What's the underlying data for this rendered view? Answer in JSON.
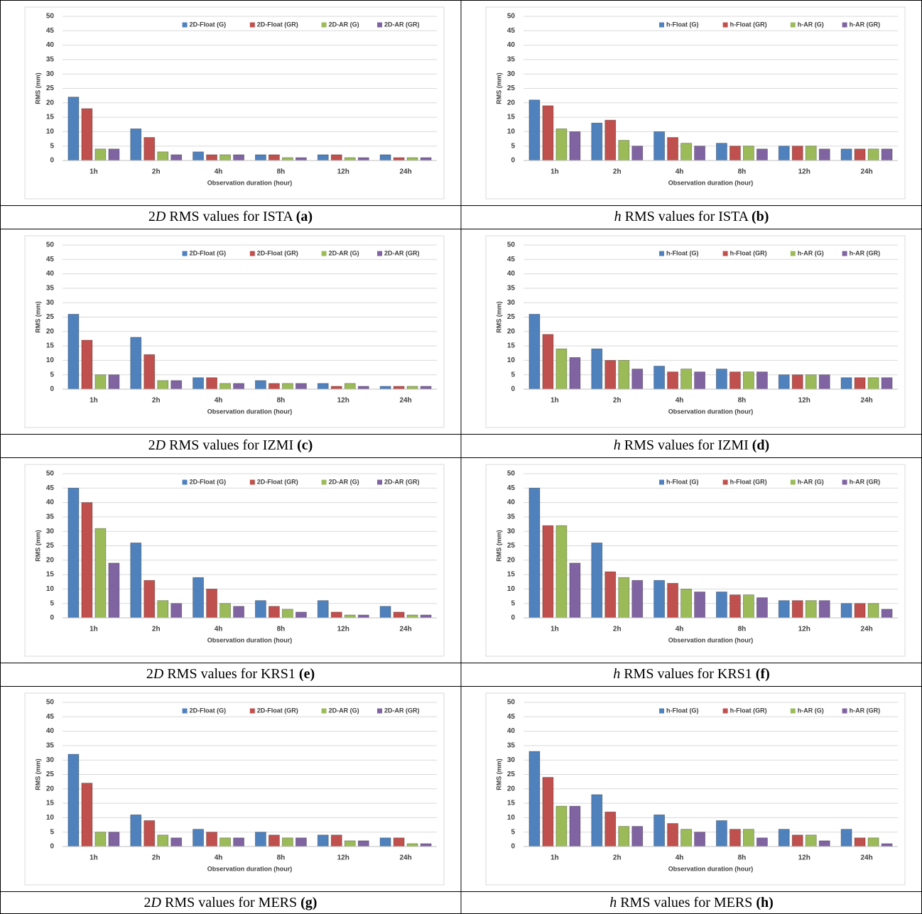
{
  "chart_data": [
    {
      "type": "bar",
      "y_label": "RMS (mm)",
      "x_label": "Observation duration (hour)",
      "categories": [
        "1h",
        "2h",
        "4h",
        "8h",
        "12h",
        "24h"
      ],
      "ylim": [
        0,
        50
      ],
      "yticks": [
        0,
        5,
        10,
        15,
        20,
        25,
        30,
        35,
        40,
        45,
        50
      ],
      "grid": true,
      "legend": "top-right",
      "series": [
        {
          "name": "2D-Float (G)",
          "color": "#4f81bd",
          "values": [
            22,
            11,
            3,
            2,
            2,
            2
          ]
        },
        {
          "name": "2D-Float (GR)",
          "color": "#c0504d",
          "values": [
            18,
            8,
            2,
            2,
            2,
            1
          ]
        },
        {
          "name": "2D-AR (G)",
          "color": "#9bbb59",
          "values": [
            4,
            3,
            2,
            1,
            1,
            1
          ]
        },
        {
          "name": "2D-AR (GR)",
          "color": "#8064a2",
          "values": [
            4,
            2,
            2,
            1,
            1,
            1
          ]
        }
      ],
      "caption": {
        "lead": "2",
        "var": "D",
        "text": "RMS values for ISTA",
        "label": "(a)"
      }
    },
    {
      "type": "bar",
      "y_label": "RMS (mm)",
      "x_label": "Observation duration (hour)",
      "categories": [
        "1h",
        "2h",
        "4h",
        "8h",
        "12h",
        "24h"
      ],
      "ylim": [
        0,
        50
      ],
      "yticks": [
        0,
        5,
        10,
        15,
        20,
        25,
        30,
        35,
        40,
        45,
        50
      ],
      "grid": true,
      "legend": "top-right",
      "series": [
        {
          "name": "h-Float (G)",
          "color": "#4f81bd",
          "values": [
            21,
            13,
            10,
            6,
            5,
            4
          ]
        },
        {
          "name": "h-Float (GR)",
          "color": "#c0504d",
          "values": [
            19,
            14,
            8,
            5,
            5,
            4
          ]
        },
        {
          "name": "h-AR (G)",
          "color": "#9bbb59",
          "values": [
            11,
            7,
            6,
            5,
            5,
            4
          ]
        },
        {
          "name": "h-AR (GR)",
          "color": "#8064a2",
          "values": [
            10,
            5,
            5,
            4,
            4,
            4
          ]
        }
      ],
      "caption": {
        "var": "h",
        "text": "RMS values for ISTA",
        "label": "(b)"
      }
    },
    {
      "type": "bar",
      "y_label": "RMS (mm)",
      "x_label": "Observation duration (hour)",
      "categories": [
        "1h",
        "2h",
        "4h",
        "8h",
        "12h",
        "24h"
      ],
      "ylim": [
        0,
        50
      ],
      "yticks": [
        0,
        5,
        10,
        15,
        20,
        25,
        30,
        35,
        40,
        45,
        50
      ],
      "grid": true,
      "legend": "top-right",
      "series": [
        {
          "name": "2D-Float (G)",
          "color": "#4f81bd",
          "values": [
            26,
            18,
            4,
            3,
            2,
            1
          ]
        },
        {
          "name": "2D-Float (GR)",
          "color": "#c0504d",
          "values": [
            17,
            12,
            4,
            2,
            1,
            1
          ]
        },
        {
          "name": "2D-AR (G)",
          "color": "#9bbb59",
          "values": [
            5,
            3,
            2,
            2,
            2,
            1
          ]
        },
        {
          "name": "2D-AR (GR)",
          "color": "#8064a2",
          "values": [
            5,
            3,
            2,
            2,
            1,
            1
          ]
        }
      ],
      "caption": {
        "lead": "2",
        "var": "D",
        "text": "RMS values for IZMI",
        "label": "(c)"
      }
    },
    {
      "type": "bar",
      "y_label": "RMS (mm)",
      "x_label": "Observation duration (hour)",
      "categories": [
        "1h",
        "2h",
        "4h",
        "8h",
        "12h",
        "24h"
      ],
      "ylim": [
        0,
        50
      ],
      "yticks": [
        0,
        5,
        10,
        15,
        20,
        25,
        30,
        35,
        40,
        45,
        50
      ],
      "grid": true,
      "legend": "top-right",
      "series": [
        {
          "name": "h-Float (G)",
          "color": "#4f81bd",
          "values": [
            26,
            14,
            8,
            7,
            5,
            4
          ]
        },
        {
          "name": "h-Float (GR)",
          "color": "#c0504d",
          "values": [
            19,
            10,
            6,
            6,
            5,
            4
          ]
        },
        {
          "name": "h-AR (G)",
          "color": "#9bbb59",
          "values": [
            14,
            10,
            7,
            6,
            5,
            4
          ]
        },
        {
          "name": "h-AR (GR)",
          "color": "#8064a2",
          "values": [
            11,
            7,
            6,
            6,
            5,
            4
          ]
        }
      ],
      "caption": {
        "var": "h",
        "text": "RMS values for IZMI",
        "label": "(d)"
      }
    },
    {
      "type": "bar",
      "y_label": "RMS (mm)",
      "x_label": "Observation duration (hour)",
      "categories": [
        "1h",
        "2h",
        "4h",
        "8h",
        "12h",
        "24h"
      ],
      "ylim": [
        0,
        50
      ],
      "yticks": [
        0,
        5,
        10,
        15,
        20,
        25,
        30,
        35,
        40,
        45,
        50
      ],
      "grid": true,
      "legend": "top-right",
      "series": [
        {
          "name": "2D-Float (G)",
          "color": "#4f81bd",
          "values": [
            45,
            26,
            14,
            6,
            6,
            4
          ]
        },
        {
          "name": "2D-Float (GR)",
          "color": "#c0504d",
          "values": [
            40,
            13,
            10,
            4,
            2,
            2
          ]
        },
        {
          "name": "2D-AR (G)",
          "color": "#9bbb59",
          "values": [
            31,
            6,
            5,
            3,
            1,
            1
          ]
        },
        {
          "name": "2D-AR (GR)",
          "color": "#8064a2",
          "values": [
            19,
            5,
            4,
            2,
            1,
            1
          ]
        }
      ],
      "caption": {
        "lead": "2",
        "var": "D",
        "text": "RMS values for KRS1",
        "label": "(e)"
      }
    },
    {
      "type": "bar",
      "y_label": "RMS (mm)",
      "x_label": "Observation duration (hour)",
      "categories": [
        "1h",
        "2h",
        "4h",
        "8h",
        "12h",
        "24h"
      ],
      "ylim": [
        0,
        50
      ],
      "yticks": [
        0,
        5,
        10,
        15,
        20,
        25,
        30,
        35,
        40,
        45,
        50
      ],
      "grid": true,
      "legend": "top-right",
      "series": [
        {
          "name": "h-Float (G)",
          "color": "#4f81bd",
          "values": [
            45,
            26,
            13,
            9,
            6,
            5
          ]
        },
        {
          "name": "h-Float (GR)",
          "color": "#c0504d",
          "values": [
            32,
            16,
            12,
            8,
            6,
            5
          ]
        },
        {
          "name": "h-AR (G)",
          "color": "#9bbb59",
          "values": [
            32,
            14,
            10,
            8,
            6,
            5
          ]
        },
        {
          "name": "h-AR (GR)",
          "color": "#8064a2",
          "values": [
            19,
            13,
            9,
            7,
            6,
            3
          ]
        }
      ],
      "caption": {
        "var": "h",
        "text": "RMS values for KRS1",
        "label": "(f)"
      }
    },
    {
      "type": "bar",
      "y_label": "RMS (mm)",
      "x_label": "Observation duration (hour)",
      "categories": [
        "1h",
        "2h",
        "4h",
        "8h",
        "12h",
        "24h"
      ],
      "ylim": [
        0,
        50
      ],
      "yticks": [
        0,
        5,
        10,
        15,
        20,
        25,
        30,
        35,
        40,
        45,
        50
      ],
      "grid": true,
      "legend": "top-right",
      "series": [
        {
          "name": "2D-Float (G)",
          "color": "#4f81bd",
          "values": [
            32,
            11,
            6,
            5,
            4,
            3
          ]
        },
        {
          "name": "2D-Float (GR)",
          "color": "#c0504d",
          "values": [
            22,
            9,
            5,
            4,
            4,
            3
          ]
        },
        {
          "name": "2D-AR (G)",
          "color": "#9bbb59",
          "values": [
            5,
            4,
            3,
            3,
            2,
            1
          ]
        },
        {
          "name": "2D-AR (GR)",
          "color": "#8064a2",
          "values": [
            5,
            3,
            3,
            3,
            2,
            1
          ]
        }
      ],
      "caption": {
        "lead": "2",
        "var": "D",
        "text": "RMS values for MERS",
        "label": "(g)"
      }
    },
    {
      "type": "bar",
      "y_label": "RMS (mm)",
      "x_label": "Observation duration (hour)",
      "categories": [
        "1h",
        "2h",
        "4h",
        "8h",
        "12h",
        "24h"
      ],
      "ylim": [
        0,
        50
      ],
      "yticks": [
        0,
        5,
        10,
        15,
        20,
        25,
        30,
        35,
        40,
        45,
        50
      ],
      "grid": true,
      "legend": "top-right",
      "series": [
        {
          "name": "h-Float (G)",
          "color": "#4f81bd",
          "values": [
            33,
            18,
            11,
            9,
            6,
            6
          ]
        },
        {
          "name": "h-Float (GR)",
          "color": "#c0504d",
          "values": [
            24,
            12,
            8,
            6,
            4,
            3
          ]
        },
        {
          "name": "h-AR (G)",
          "color": "#9bbb59",
          "values": [
            14,
            7,
            6,
            6,
            4,
            3
          ]
        },
        {
          "name": "h-AR (GR)",
          "color": "#8064a2",
          "values": [
            14,
            7,
            5,
            3,
            2,
            1
          ]
        }
      ],
      "caption": {
        "var": "h",
        "text": "RMS values for MERS",
        "label": "(h)"
      }
    }
  ]
}
